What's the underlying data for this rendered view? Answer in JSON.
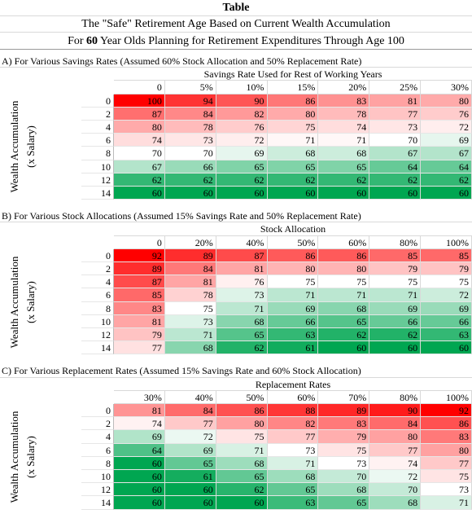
{
  "header": {
    "label": "Table",
    "title": "The \"Safe\" Retirement Age Based on Current Wealth Accumulation",
    "subtitle_parts": [
      "For ",
      "60",
      " Year Olds Planning for Retirement Expenditures Through Age 100"
    ]
  },
  "sections": [
    {
      "title": "A) For Various Savings Rates (Assumed 60% Stock Allocation and 50% Replacement Rate)",
      "column_title": "Savings Rate Used for Rest of Working Years",
      "columns": [
        "0",
        "5%",
        "10%",
        "15%",
        "20%",
        "25%",
        "30%"
      ],
      "row_axis_label": [
        "Wealth Accumulation",
        "(x Salary)"
      ],
      "row_labels": [
        0,
        2,
        4,
        6,
        8,
        10,
        12,
        14
      ],
      "rows": [
        [
          100,
          94,
          90,
          86,
          83,
          81,
          80
        ],
        [
          87,
          84,
          82,
          80,
          78,
          77,
          76
        ],
        [
          80,
          78,
          76,
          75,
          74,
          73,
          72
        ],
        [
          74,
          73,
          72,
          71,
          71,
          70,
          69
        ],
        [
          70,
          70,
          69,
          68,
          68,
          67,
          67
        ],
        [
          67,
          66,
          65,
          65,
          65,
          64,
          64
        ],
        [
          62,
          62,
          62,
          62,
          62,
          62,
          62
        ],
        [
          60,
          60,
          60,
          60,
          60,
          60,
          60
        ]
      ]
    },
    {
      "title": "B) For Various Stock Allocations (Assumed 15% Savings Rate and  50% Replacement Rate)",
      "column_title": "Stock Allocation",
      "columns": [
        "0",
        "20%",
        "40%",
        "50%",
        "60%",
        "80%",
        "100%"
      ],
      "row_axis_label": [
        "Wealth Accumulation",
        "(x Salary)"
      ],
      "row_labels": [
        0,
        2,
        4,
        6,
        8,
        10,
        12,
        14
      ],
      "rows": [
        [
          92,
          89,
          87,
          86,
          86,
          85,
          85
        ],
        [
          89,
          84,
          81,
          80,
          80,
          79,
          79
        ],
        [
          87,
          81,
          76,
          75,
          75,
          75,
          75
        ],
        [
          85,
          78,
          73,
          71,
          71,
          71,
          72
        ],
        [
          83,
          75,
          71,
          69,
          68,
          69,
          69
        ],
        [
          81,
          73,
          68,
          66,
          65,
          66,
          66
        ],
        [
          79,
          71,
          65,
          63,
          62,
          62,
          63
        ],
        [
          77,
          68,
          62,
          61,
          60,
          60,
          60
        ]
      ]
    },
    {
      "title": "C) For Various Replacement Rates (Assumed 15% Savings Rate and  60% Stock Allocation)",
      "column_title": "Replacement Rates",
      "columns": [
        "30%",
        "40%",
        "50%",
        "60%",
        "70%",
        "80%",
        "100%"
      ],
      "row_axis_label": [
        "Wealth Accumulation",
        "(x Salary)"
      ],
      "row_labels": [
        0,
        2,
        4,
        6,
        8,
        10,
        12,
        14
      ],
      "rows": [
        [
          81,
          84,
          86,
          88,
          89,
          90,
          92
        ],
        [
          74,
          77,
          80,
          82,
          83,
          84,
          86
        ],
        [
          69,
          72,
          75,
          77,
          79,
          80,
          83
        ],
        [
          64,
          69,
          71,
          73,
          75,
          77,
          80
        ],
        [
          60,
          65,
          68,
          71,
          73,
          74,
          77
        ],
        [
          60,
          61,
          65,
          68,
          70,
          72,
          75
        ],
        [
          60,
          60,
          62,
          65,
          68,
          70,
          73
        ],
        [
          60,
          60,
          60,
          63,
          65,
          68,
          71
        ]
      ]
    }
  ]
}
